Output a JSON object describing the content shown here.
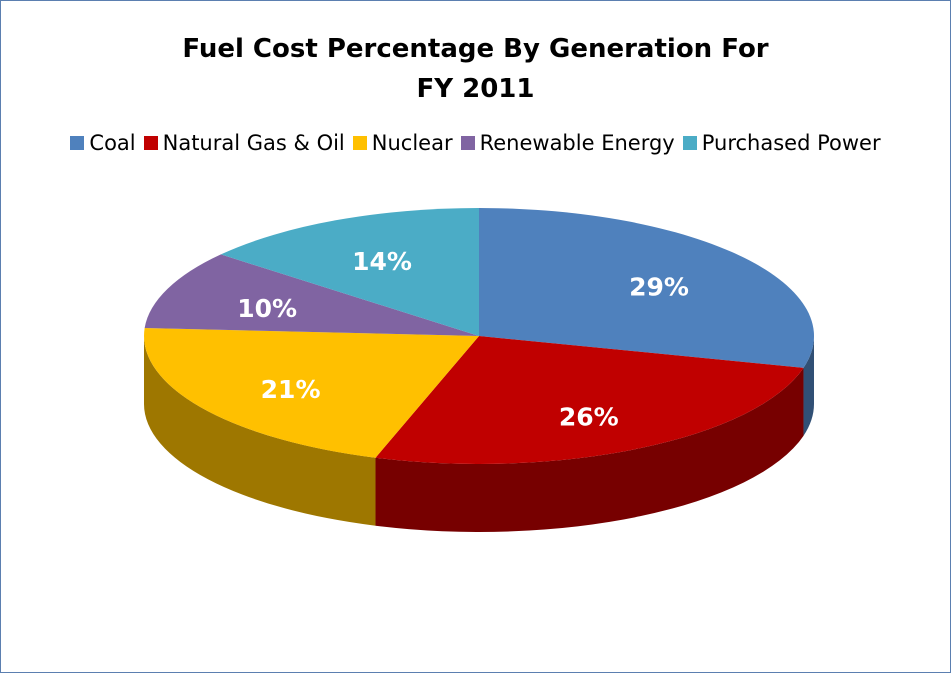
{
  "chart_data": {
    "type": "pie",
    "title": "Fuel Cost Percentage By Generation For FY 2011",
    "categories": [
      "Coal",
      "Natural Gas & Oil",
      "Nuclear",
      "Renewable Energy",
      "Purchased Power"
    ],
    "values": [
      29,
      26,
      21,
      10,
      14
    ],
    "value_labels": [
      "29%",
      "26%",
      "21%",
      "10%",
      "14%"
    ],
    "colors": [
      "#4f81bd",
      "#c00000",
      "#ffc000",
      "#8064a2",
      "#4bacc6"
    ],
    "legend": "top"
  }
}
